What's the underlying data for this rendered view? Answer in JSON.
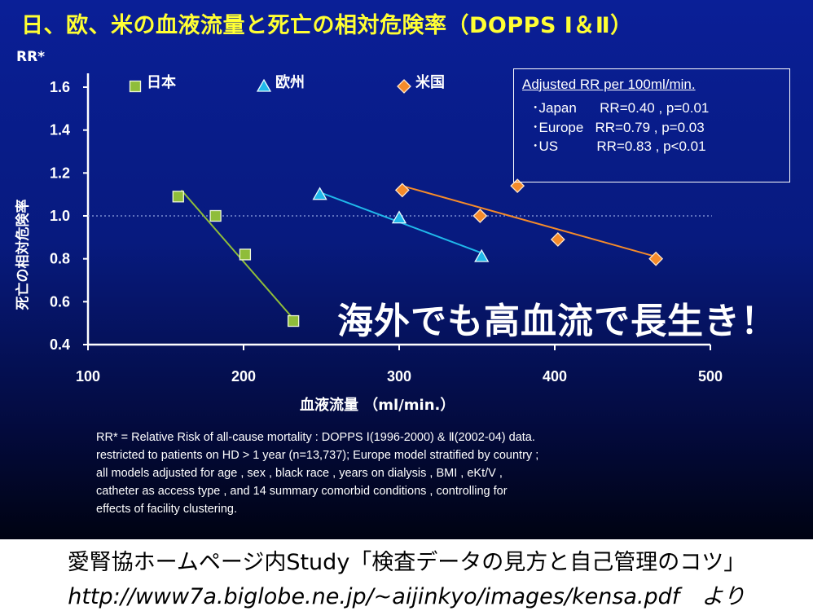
{
  "title": "日、欧、米の血液流量と死亡の相対危険率（DOPPS Ⅰ＆Ⅱ）",
  "annotation": "海外でも高血流で長生き！",
  "stats_box": {
    "header": "Adjusted  RR  per 100ml/min.",
    "rows": [
      "･Japan      RR=0.40 , p=0.01",
      "･Europe   RR=0.79 , p=0.03",
      "･US          RR=0.83 , p<0.01"
    ]
  },
  "notes": [
    "RR* = Relative Risk of all-cause mortality : DOPPS Ⅰ(1996-2000) & Ⅱ(2002-04) data.",
    "restricted to patients on HD > 1 year (n=13,737); Europe model stratified by country ;",
    "all models adjusted for age , sex , black race , years on dialysis , BMI , eKt/V ,",
    "catheter as access type , and 14 summary comorbid conditions , controlling for",
    "effects of  facility  clustering."
  ],
  "footer": {
    "line1": "愛腎協ホームページ内Study「検査データの見方と自己管理のコツ」",
    "line2": "http://www7a.biglobe.ne.jp/~aijinkyo/images/kensa.pdf　より"
  },
  "colors": {
    "japan": "#8fbd3a",
    "europe": "#20b8ea",
    "us": "#f58b2a",
    "title": "#ffff33"
  },
  "chart_data": {
    "type": "scatter",
    "xlabel": "血液流量 （ml/min.）",
    "ylabel": "死亡の相対危険率",
    "ytitle": "RR*",
    "xlim": [
      100,
      500
    ],
    "ylim": [
      0.4,
      1.6
    ],
    "xticks": [
      100,
      200,
      300,
      400,
      500
    ],
    "yticks": [
      0.4,
      0.6,
      0.8,
      1.0,
      1.2,
      1.4,
      1.6
    ],
    "ytick_labels": [
      "0.4",
      "0.6",
      "0.8",
      "1.0",
      "1.2",
      "1.4",
      "1.6"
    ],
    "reference_line_y": 1.0,
    "legend_placement": "top",
    "series": [
      {
        "name": "日本",
        "marker": "square",
        "color": "#8fbd3a",
        "x": [
          158,
          182,
          201,
          232
        ],
        "y": [
          1.09,
          1.0,
          0.82,
          0.51
        ],
        "trend": [
          [
            160,
            1.12
          ],
          [
            232,
            0.52
          ]
        ]
      },
      {
        "name": "欧州",
        "marker": "triangle",
        "color": "#20b8ea",
        "x": [
          249,
          300,
          353
        ],
        "y": [
          1.1,
          0.99,
          0.81
        ],
        "trend": [
          [
            249,
            1.11
          ],
          [
            352,
            0.83
          ]
        ]
      },
      {
        "name": "米国",
        "marker": "diamond",
        "color": "#f58b2a",
        "x": [
          302,
          352,
          376,
          402,
          465
        ],
        "y": [
          1.12,
          1.0,
          1.14,
          0.89,
          0.8
        ],
        "trend": [
          [
            302,
            1.14
          ],
          [
            465,
            0.81
          ]
        ]
      }
    ],
    "legend_legend_order": [
      "日本",
      "欧州",
      "米国"
    ]
  }
}
